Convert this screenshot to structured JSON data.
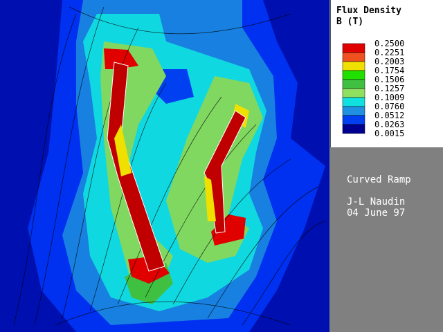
{
  "legend": {
    "title": "Flux Density",
    "unit": "B (T)",
    "labels": [
      "0.2500",
      "0.2251",
      "0.2003",
      "0.1754",
      "0.1506",
      "0.1257",
      "0.1009",
      "0.0760",
      "0.0512",
      "0.0263",
      "0.0015"
    ],
    "colors": [
      "#e00000",
      "#f05020",
      "#f0e000",
      "#20e000",
      "#40c040",
      "#90e060",
      "#10e0e0",
      "#2090e0",
      "#0040f0",
      "#000090"
    ]
  },
  "info": {
    "title": "Curved Ramp",
    "author": "J-L Naudin",
    "date": "04 June 97"
  }
}
